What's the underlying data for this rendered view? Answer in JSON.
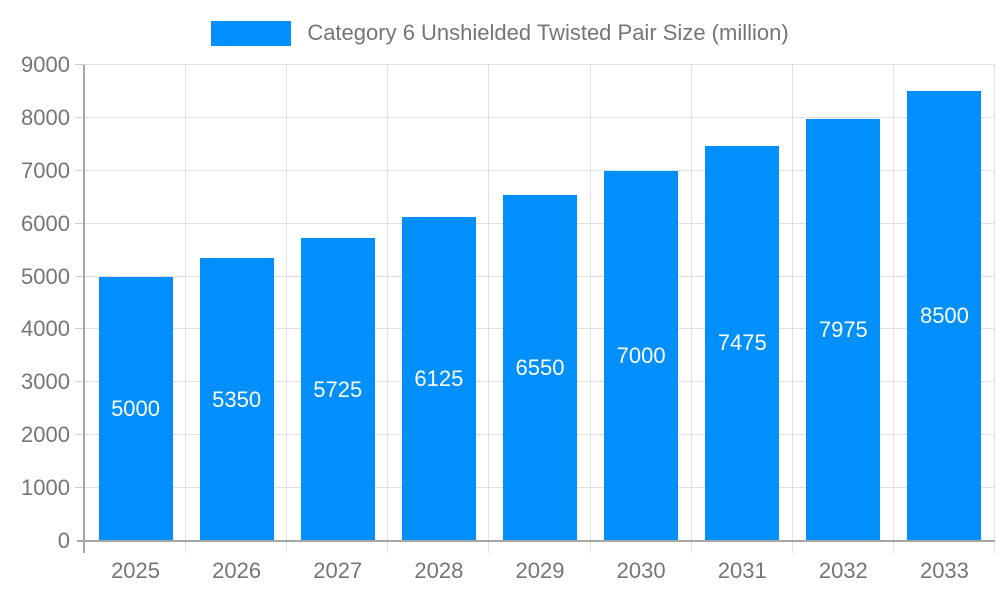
{
  "chart_data": {
    "type": "bar",
    "title": "Category 6 Unshielded Twisted Pair Size (million)",
    "categories": [
      "2025",
      "2026",
      "2027",
      "2028",
      "2029",
      "2030",
      "2031",
      "2032",
      "2033"
    ],
    "values": [
      5000,
      5350,
      5725,
      6125,
      6550,
      7000,
      7475,
      7975,
      8500
    ],
    "xlabel": "",
    "ylabel": "",
    "ylim": [
      0,
      9000
    ],
    "ytick_step": 1000,
    "grid": true,
    "legend_position": "top",
    "colors": {
      "bar": "#008FFB",
      "axis_label": "#757575",
      "value_label": "#ffffff",
      "gridline": "#e0e0e0",
      "axis_line": "#a6a6a6",
      "tick": "#cccccc",
      "background": "#ffffff"
    }
  }
}
